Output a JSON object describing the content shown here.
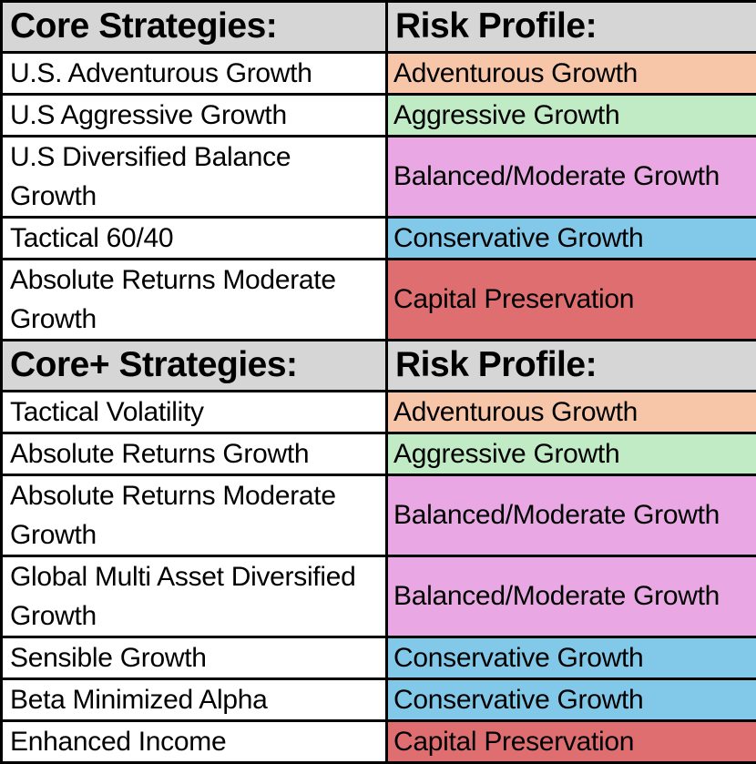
{
  "table": {
    "name": "strategies-risk-profile-table",
    "colors": {
      "header_bg": "#D6D6D6",
      "border": "#000000",
      "text": "#000000",
      "left_cell_bg": "#FFFFFF",
      "risk": {
        "Adventurous Growth": "#F7C6A8",
        "Aggressive Growth": "#C0EBC4",
        "Balanced/Moderate Growth": "#E9A8E3",
        "Conservative Growth": "#82C8E9",
        "Capital Preservation": "#DE6E70"
      }
    },
    "sections": [
      {
        "header": {
          "strategies_label": "Core Strategies:",
          "risk_label": "Risk Profile:"
        },
        "rows": [
          {
            "strategy": "U.S. Adventurous Growth",
            "risk": "Adventurous Growth",
            "tall": false
          },
          {
            "strategy": "U.S Aggressive Growth",
            "risk": "Aggressive Growth",
            "tall": false
          },
          {
            "strategy": "U.S Diversified Balance Growth",
            "risk": "Balanced/Moderate Growth",
            "tall": true
          },
          {
            "strategy": "Tactical 60/40",
            "risk": "Conservative Growth",
            "tall": false
          },
          {
            "strategy": "Absolute Returns Moderate Growth",
            "risk": "Capital Preservation",
            "tall": true
          }
        ]
      },
      {
        "header": {
          "strategies_label": "Core+ Strategies:",
          "risk_label": "Risk Profile:"
        },
        "rows": [
          {
            "strategy": "Tactical Volatility",
            "risk": "Adventurous Growth",
            "tall": false
          },
          {
            "strategy": "Absolute Returns Growth",
            "risk": "Aggressive Growth",
            "tall": false
          },
          {
            "strategy": "Absolute Returns Moderate Growth",
            "risk": "Balanced/Moderate Growth",
            "tall": true
          },
          {
            "strategy": "Global Multi Asset Diversified Growth",
            "risk": "Balanced/Moderate Growth",
            "tall": true
          },
          {
            "strategy": "Sensible Growth",
            "risk": "Conservative Growth",
            "tall": false
          },
          {
            "strategy": "Beta Minimized Alpha",
            "risk": "Conservative Growth",
            "tall": false
          },
          {
            "strategy": "Enhanced Income",
            "risk": "Capital Preservation",
            "tall": false
          }
        ]
      }
    ]
  }
}
